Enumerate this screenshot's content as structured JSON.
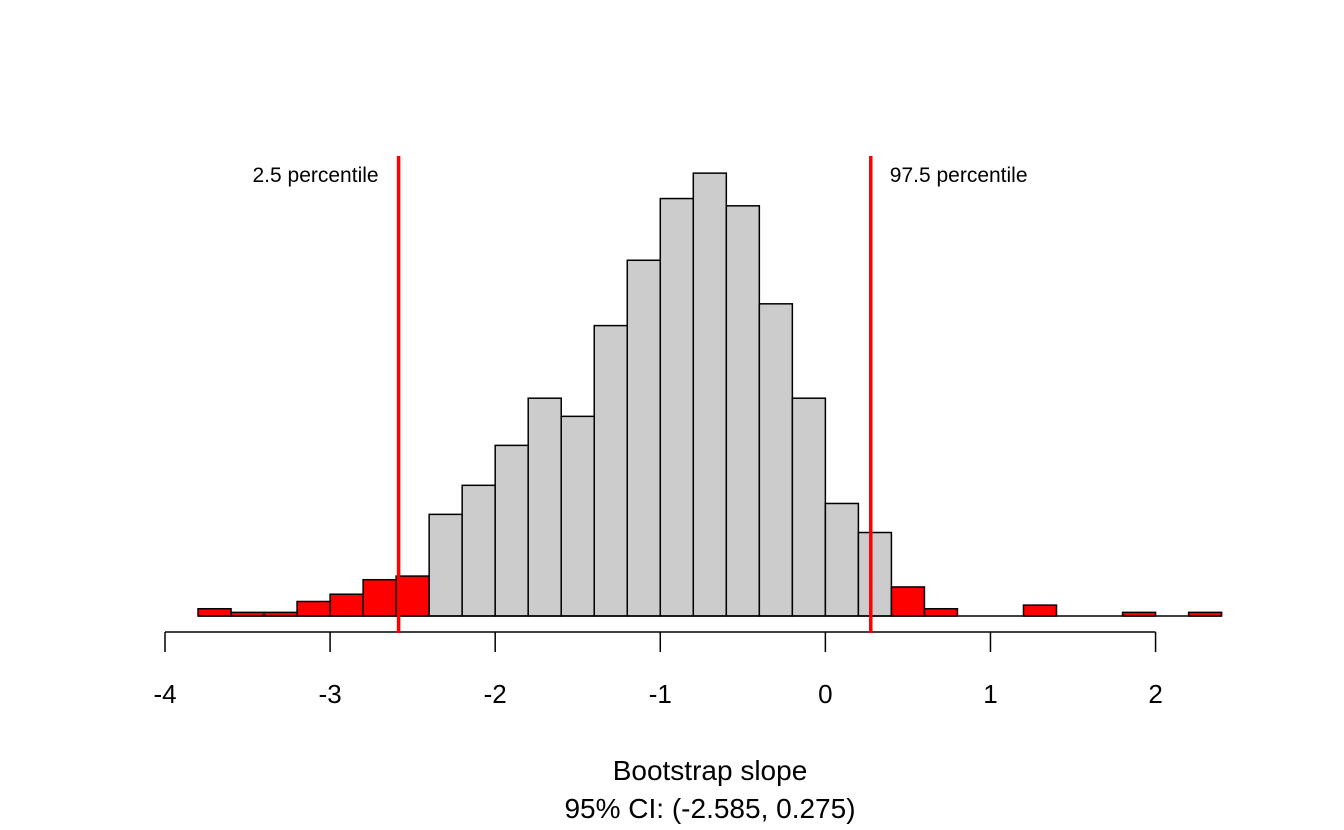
{
  "chart_data": {
    "type": "bar",
    "title": "",
    "xlabel": "Bootstrap slope",
    "subtitle": "95% CI: (-2.585, 0.275)",
    "ylabel": "",
    "xlim": [
      -4,
      2.4
    ],
    "ylim": [
      0,
      135
    ],
    "x_ticks": [
      -4,
      -3,
      -2,
      -1,
      0,
      1,
      2
    ],
    "x_tick_labels": [
      "-4",
      "-3",
      "-2",
      "-1",
      "0",
      "1",
      "2"
    ],
    "bin_width": 0.2,
    "bins": [
      {
        "start": -3.8,
        "count": 2,
        "in_ci": false
      },
      {
        "start": -3.6,
        "count": 1,
        "in_ci": false
      },
      {
        "start": -3.4,
        "count": 1,
        "in_ci": false
      },
      {
        "start": -3.2,
        "count": 4,
        "in_ci": false
      },
      {
        "start": -3.0,
        "count": 6,
        "in_ci": false
      },
      {
        "start": -2.8,
        "count": 10,
        "in_ci": false
      },
      {
        "start": -2.6,
        "count": 11,
        "in_ci": false
      },
      {
        "start": -2.4,
        "count": 28,
        "in_ci": true
      },
      {
        "start": -2.2,
        "count": 36,
        "in_ci": true
      },
      {
        "start": -2.0,
        "count": 47,
        "in_ci": true
      },
      {
        "start": -1.8,
        "count": 60,
        "in_ci": true
      },
      {
        "start": -1.6,
        "count": 55,
        "in_ci": true
      },
      {
        "start": -1.4,
        "count": 80,
        "in_ci": true
      },
      {
        "start": -1.2,
        "count": 98,
        "in_ci": true
      },
      {
        "start": -1.0,
        "count": 115,
        "in_ci": true
      },
      {
        "start": -0.8,
        "count": 122,
        "in_ci": true
      },
      {
        "start": -0.6,
        "count": 113,
        "in_ci": true
      },
      {
        "start": -0.4,
        "count": 86,
        "in_ci": true
      },
      {
        "start": -0.2,
        "count": 60,
        "in_ci": true
      },
      {
        "start": 0.0,
        "count": 31,
        "in_ci": true
      },
      {
        "start": 0.2,
        "count": 23,
        "in_ci": true
      },
      {
        "start": 0.4,
        "count": 8,
        "in_ci": false
      },
      {
        "start": 0.6,
        "count": 2,
        "in_ci": false
      },
      {
        "start": 0.8,
        "count": 0,
        "in_ci": false
      },
      {
        "start": 1.0,
        "count": 0,
        "in_ci": false
      },
      {
        "start": 1.2,
        "count": 3,
        "in_ci": false
      },
      {
        "start": 1.4,
        "count": 0,
        "in_ci": false
      },
      {
        "start": 1.6,
        "count": 0,
        "in_ci": false
      },
      {
        "start": 1.8,
        "count": 1,
        "in_ci": false
      },
      {
        "start": 2.0,
        "count": 0,
        "in_ci": false
      },
      {
        "start": 2.2,
        "count": 1,
        "in_ci": false
      }
    ],
    "percentile_lines": [
      {
        "label": "2.5 percentile",
        "value": -2.585,
        "label_side": "left"
      },
      {
        "label": "97.5 percentile",
        "value": 0.275,
        "label_side": "right"
      }
    ],
    "colors": {
      "ci_fill": "#CCCCCC",
      "tail_fill": "#FF0000",
      "bar_stroke": "#000000",
      "line": "#FF0000",
      "axis": "#000000"
    }
  }
}
